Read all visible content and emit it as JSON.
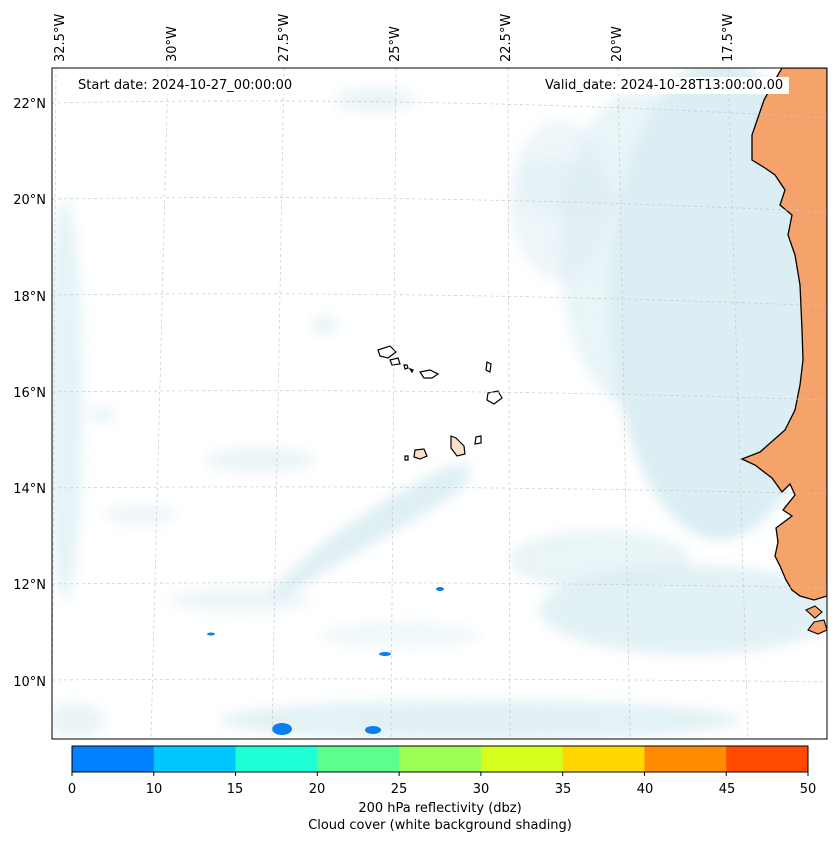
{
  "map": {
    "start_date_text": "Start date: 2024-10-27_00:00:00",
    "valid_date_text": "Valid_date: 2024-10-28T13:00:00.00",
    "lon_labels": [
      "32.5°W",
      "30°W",
      "27.5°W",
      "25°W",
      "22.5°W",
      "20°W",
      "17.5°W"
    ],
    "lat_labels": [
      "22°N",
      "20°N",
      "18°N",
      "16°N",
      "14°N",
      "12°N",
      "10°N"
    ],
    "land_color": "#f5a36a",
    "cloud_color": "#cfe8ef",
    "echo_color": "#0a7ff0"
  },
  "colorbar": {
    "ticks": [
      "0",
      "10",
      "15",
      "20",
      "25",
      "30",
      "35",
      "40",
      "45",
      "50"
    ],
    "colors": [
      "#0080ff",
      "#00c8ff",
      "#1effd6",
      "#5cff8e",
      "#9dff52",
      "#d6ff1e",
      "#ffd600",
      "#ff8c00",
      "#ff4a00"
    ],
    "label": "200 hPa reflectivity (dbz)",
    "sublabel": "Cloud cover (white background shading)"
  }
}
